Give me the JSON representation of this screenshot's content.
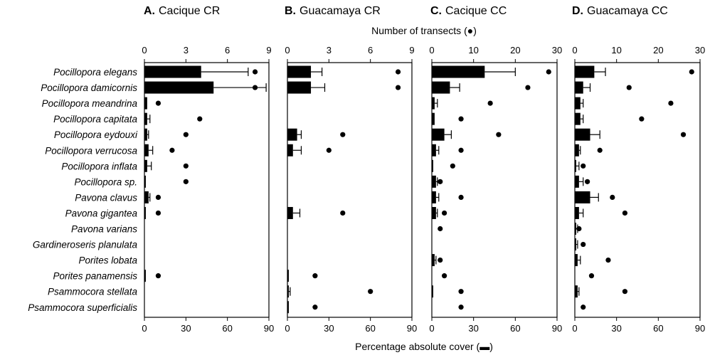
{
  "chart_data": {
    "type": "bar",
    "categories": [
      "Pocillopora elegans",
      "Pocillopora damicornis",
      "Pocillopora meandrina",
      "Pocillopora capitata",
      "Pocillopora eydouxi",
      "Pocillopora verrucosa",
      "Pocillopora inflata",
      "Pocillopora sp.",
      "Pavona clavus",
      "Pavona gigantea",
      "Pavona varians",
      "Gardineroseris planulata",
      "Porites lobata",
      "Porites panamensis",
      "Psammocora stellata",
      "Psammocora superficialis"
    ],
    "xlabel_bottom": "Percentage absolute cover (",
    "xlabel_bottom_close": ")",
    "xlabel_top": "Number of transects (",
    "xlabel_top_close": ")",
    "panels": [
      {
        "letter": "A.",
        "title": "Cacique CR",
        "bottom_axis": {
          "min": 0,
          "max": 90,
          "ticks": [
            0,
            30,
            60,
            90
          ]
        },
        "top_axis": {
          "min": 0,
          "max": 9,
          "ticks": [
            0,
            3,
            6,
            9
          ]
        },
        "cover": [
          41,
          50,
          2,
          2,
          2,
          3,
          2,
          1,
          3,
          1,
          0,
          0,
          0,
          1,
          0,
          0
        ],
        "error": [
          34,
          38,
          0,
          2,
          1,
          3,
          3,
          0,
          1,
          0,
          0,
          0,
          0,
          0,
          0,
          0
        ],
        "transects": [
          8,
          8,
          1,
          4,
          3,
          2,
          3,
          3,
          1,
          1,
          null,
          null,
          null,
          1,
          null,
          null
        ]
      },
      {
        "letter": "B.",
        "title": "Guacamaya CR",
        "bottom_axis": {
          "min": 0,
          "max": 90,
          "ticks": [
            0,
            30,
            60,
            90
          ]
        },
        "top_axis": {
          "min": 0,
          "max": 9,
          "ticks": [
            0,
            3,
            6,
            9
          ]
        },
        "cover": [
          17,
          17,
          0,
          0,
          7,
          4,
          0,
          0,
          0,
          4,
          0,
          0,
          0,
          1,
          1,
          1
        ],
        "error": [
          8,
          10,
          0,
          0,
          3,
          6,
          0,
          0,
          0,
          5,
          0,
          0,
          0,
          0,
          1,
          0
        ],
        "transects": [
          8,
          8,
          null,
          null,
          4,
          3,
          null,
          null,
          null,
          4,
          null,
          null,
          null,
          2,
          6,
          2
        ]
      },
      {
        "letter": "C.",
        "title": "Cacique CC",
        "bottom_axis": {
          "min": 0,
          "max": 90,
          "ticks": [
            0,
            30,
            60,
            90
          ]
        },
        "top_axis": {
          "min": 0,
          "max": 30,
          "ticks": [
            0,
            10,
            20,
            30
          ]
        },
        "cover": [
          38,
          13,
          2,
          2,
          9,
          3,
          1,
          3,
          3,
          3,
          0,
          0,
          2,
          0,
          1,
          0
        ],
        "error": [
          22,
          7,
          2,
          0,
          5,
          2,
          0,
          1,
          2,
          1,
          0,
          0,
          1,
          0,
          0,
          0
        ],
        "transects": [
          28,
          23,
          14,
          7,
          16,
          7,
          5,
          2,
          7,
          3,
          2,
          null,
          2,
          3,
          7,
          7
        ]
      },
      {
        "letter": "D.",
        "title": "Guacamaya CC",
        "bottom_axis": {
          "min": 0,
          "max": 90,
          "ticks": [
            0,
            30,
            60,
            90
          ]
        },
        "top_axis": {
          "min": 0,
          "max": 30,
          "ticks": [
            0,
            10,
            20,
            30
          ]
        },
        "cover": [
          14,
          6,
          4,
          4,
          11,
          3,
          1,
          3,
          11,
          3,
          1,
          1,
          2,
          0,
          2,
          0
        ],
        "error": [
          8,
          5,
          2,
          2,
          7,
          1,
          2,
          3,
          6,
          3,
          1,
          1,
          2,
          0,
          1,
          0
        ],
        "transects": [
          28,
          13,
          23,
          16,
          26,
          6,
          2,
          3,
          9,
          12,
          1,
          2,
          8,
          4,
          12,
          2
        ]
      }
    ]
  }
}
